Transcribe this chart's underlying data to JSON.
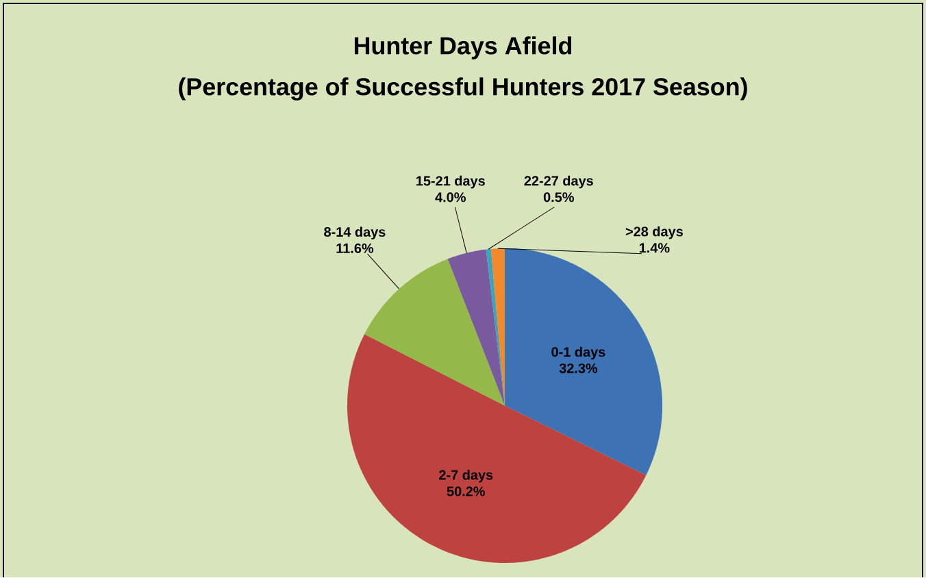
{
  "chart_data": {
    "type": "pie",
    "title": "Hunter Days Afield",
    "subtitle": "(Percentage of Successful Hunters 2017 Season)",
    "categories": [
      "0-1 days",
      "2-7 days",
      "8-14 days",
      "15-21 days",
      "22-27 days",
      ">28 days"
    ],
    "values": [
      32.3,
      50.2,
      11.6,
      4.0,
      0.5,
      1.4
    ],
    "value_labels": [
      "32.3%",
      "50.2%",
      "11.6%",
      "4.0%",
      "0.5%",
      "1.4%"
    ],
    "colors": [
      "#3d72b4",
      "#be423f",
      "#94b84a",
      "#7a5a9e",
      "#3aa3bd",
      "#f28a2c"
    ]
  }
}
